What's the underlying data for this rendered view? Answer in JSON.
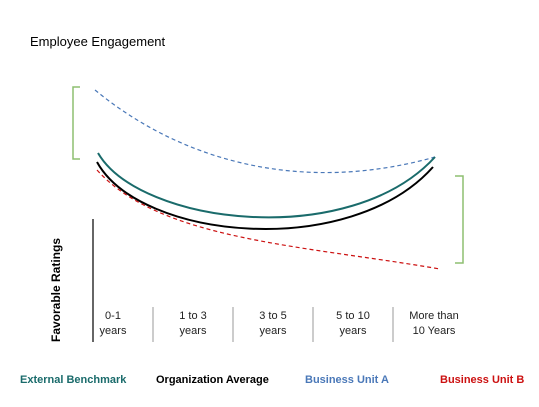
{
  "chart_data": {
    "type": "line",
    "title": "Employee Engagement",
    "ylabel": "Favorable Ratings",
    "xlabel": "",
    "categories": [
      [
        "0-1",
        "years"
      ],
      [
        "1 to 3",
        "years"
      ],
      [
        "3 to 5",
        "years"
      ],
      [
        "5 to 10",
        "years"
      ],
      [
        "More than",
        "10 Years"
      ]
    ],
    "series": [
      {
        "name": "External Benchmark",
        "color": "#1a6b6b",
        "style": "solid"
      },
      {
        "name": "Organization  Average",
        "color": "#000000",
        "style": "solid"
      },
      {
        "name": "Business Unit A",
        "color": "#4a78b8",
        "style": "dashed"
      },
      {
        "name": "Business Unit B",
        "color": "#cc1111",
        "style": "dashed"
      }
    ],
    "grid": false,
    "legend_position": "bottom",
    "bracket_color": "#8dbf70"
  }
}
